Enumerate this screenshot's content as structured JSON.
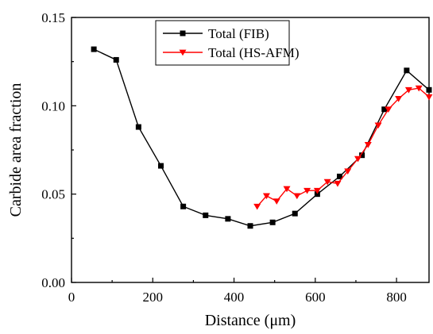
{
  "chart_data": {
    "type": "line",
    "xlabel": "Distance (μm)",
    "ylabel": "Carbide area fraction",
    "xlim": [
      0,
      880
    ],
    "ylim": [
      0,
      0.15
    ],
    "x_ticks": [
      0,
      200,
      400,
      600,
      800
    ],
    "y_ticks": [
      0.0,
      0.05,
      0.1,
      0.15
    ],
    "x_tick_labels": [
      "0",
      "200",
      "400",
      "600",
      "800"
    ],
    "y_tick_labels": [
      "0.00",
      "0.05",
      "0.10",
      "0.15"
    ],
    "grid": false,
    "legend_position": "top-center",
    "series": [
      {
        "name": "Total (FIB)",
        "color": "#000000",
        "marker": "square",
        "x": [
          55,
          110,
          165,
          220,
          275,
          330,
          385,
          440,
          495,
          550,
          605,
          660,
          715,
          770,
          825,
          880
        ],
        "y": [
          0.132,
          0.126,
          0.088,
          0.066,
          0.043,
          0.038,
          0.036,
          0.032,
          0.034,
          0.039,
          0.05,
          0.06,
          0.072,
          0.098,
          0.12,
          0.109
        ]
      },
      {
        "name": "Total (HS-AFM)",
        "color": "#ff0000",
        "marker": "triangle-down",
        "x": [
          457,
          480,
          505,
          530,
          555,
          580,
          605,
          630,
          655,
          680,
          705,
          730,
          755,
          780,
          805,
          830,
          855,
          880
        ],
        "y": [
          0.043,
          0.049,
          0.046,
          0.053,
          0.049,
          0.052,
          0.052,
          0.057,
          0.056,
          0.063,
          0.07,
          0.078,
          0.089,
          0.098,
          0.104,
          0.109,
          0.11,
          0.105
        ]
      }
    ]
  }
}
